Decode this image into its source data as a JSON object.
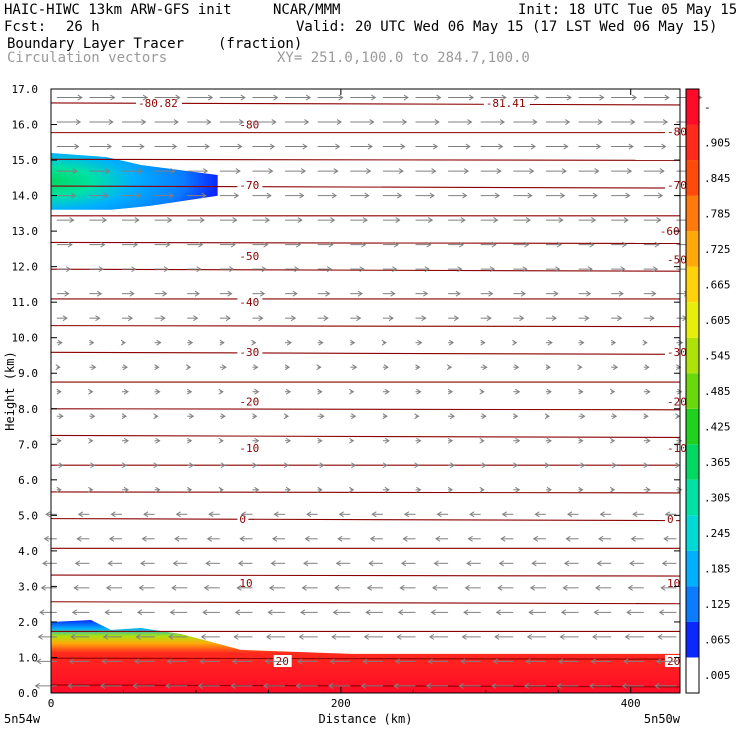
{
  "header": {
    "model": "HAIC-HIWC 13km ARW-GFS init",
    "org": "NCAR/MMM",
    "init": "Init: 18 UTC Tue 05 May 15",
    "fcst_label": "Fcst:",
    "fcst_value": "26 h",
    "valid": "Valid: 20 UTC Wed 06 May 15 (17 LST Wed 06 May 15)",
    "field": "Boundary Layer Tracer",
    "field_units": "(fraction)",
    "overlay": "Circulation vectors",
    "xy": "XY= 251.0,100.0 to 284.7,100.0"
  },
  "colors": {
    "contour": "#8b0000",
    "vector": "#808080",
    "frame": "#000000"
  },
  "chart_data": {
    "type": "heatmap",
    "title": "Boundary Layer Tracer",
    "units": "(fraction)",
    "xlabel": "Distance (km)",
    "ylabel": "Height (km)",
    "xlim": [
      0,
      434
    ],
    "ylim": [
      0.0,
      17.0
    ],
    "x_ticks": [
      "0",
      "200",
      "400"
    ],
    "y_ticks": [
      "0.0",
      "1.0",
      "2.0",
      "3.0",
      "4.0",
      "5.0",
      "6.0",
      "7.0",
      "8.0",
      "9.0",
      "10.0",
      "11.0",
      "12.0",
      "13.0",
      "14.0",
      "15.0",
      "16.0",
      "17.0"
    ],
    "x_endpoint_labels": {
      "left": "5n54w",
      "right": "5n50w"
    },
    "colorbar": {
      "labels": [
        ".005",
        ".065",
        ".125",
        ".185",
        ".245",
        ".305",
        ".365",
        ".425",
        ".485",
        ".545",
        ".605",
        ".665",
        ".725",
        ".785",
        ".845",
        ".905",
        "-"
      ],
      "colors": [
        "#ffffff",
        "#0a28ff",
        "#0a7cff",
        "#00b0ff",
        "#00d9d6",
        "#00e2a4",
        "#00d862",
        "#20d21e",
        "#6ad80a",
        "#aee20a",
        "#e6ee0a",
        "#ffd20a",
        "#ffaa0a",
        "#ff7a0a",
        "#ff4a0a",
        "#ff2a1e",
        "#ff0a28"
      ]
    },
    "tracer_regions": [
      {
        "name": "boundary layer",
        "x_range": [
          0,
          434
        ],
        "top_km": [
          2.0,
          1.1
        ],
        "max_value": 1.0
      },
      {
        "name": "upper-level plume",
        "x_range": [
          0,
          115
        ],
        "height_km": [
          13.6,
          15.2
        ],
        "max_value": 0.5
      }
    ],
    "contours": {
      "variable": "temperature",
      "labels": [
        {
          "x": 60,
          "y": 16.6,
          "text": "-80.82"
        },
        {
          "x": 300,
          "y": 16.6,
          "text": "-81.41"
        },
        {
          "x": 130,
          "y": 16.0,
          "text": "-80"
        },
        {
          "x": 425,
          "y": 15.8,
          "text": "-80"
        },
        {
          "x": 130,
          "y": 14.3,
          "text": "-70"
        },
        {
          "x": 425,
          "y": 14.3,
          "text": "-70"
        },
        {
          "x": 420,
          "y": 13.0,
          "text": "-60"
        },
        {
          "x": 130,
          "y": 12.3,
          "text": "-50"
        },
        {
          "x": 425,
          "y": 12.2,
          "text": "-50"
        },
        {
          "x": 130,
          "y": 11.0,
          "text": "-40"
        },
        {
          "x": 130,
          "y": 9.6,
          "text": "-30"
        },
        {
          "x": 425,
          "y": 9.6,
          "text": "-30"
        },
        {
          "x": 130,
          "y": 8.2,
          "text": "-20"
        },
        {
          "x": 425,
          "y": 8.2,
          "text": "-20"
        },
        {
          "x": 130,
          "y": 6.9,
          "text": "-10"
        },
        {
          "x": 425,
          "y": 6.9,
          "text": "-10"
        },
        {
          "x": 130,
          "y": 4.9,
          "text": "0"
        },
        {
          "x": 425,
          "y": 4.9,
          "text": "0"
        },
        {
          "x": 130,
          "y": 3.1,
          "text": "10"
        },
        {
          "x": 425,
          "y": 3.1,
          "text": "10"
        },
        {
          "x": 155,
          "y": 0.9,
          "text": "20"
        },
        {
          "x": 425,
          "y": 0.9,
          "text": "20"
        }
      ]
    },
    "legend": "colorbar right"
  }
}
